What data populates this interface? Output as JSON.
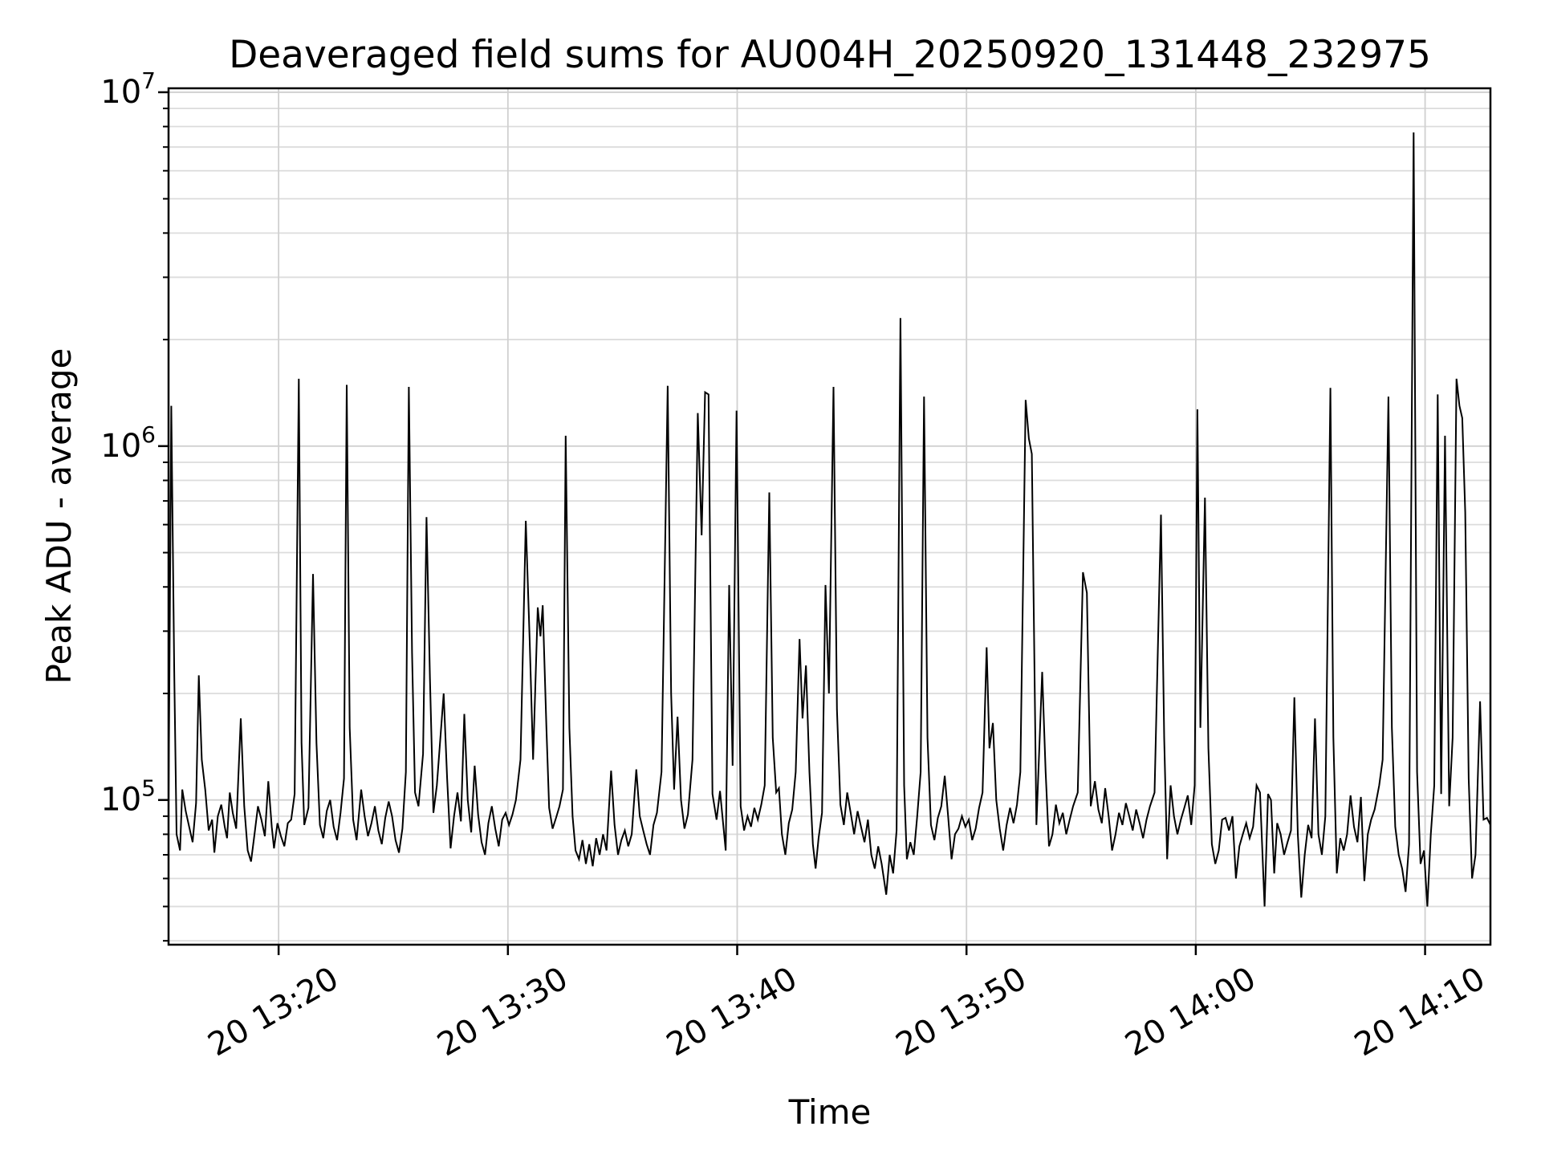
{
  "figure": {
    "title": "Deaveraged field sums for AU004H_20250920_131448_232975",
    "background": "#ffffff"
  },
  "x_axis": {
    "label": "Time",
    "tick_labels": [
      "20 13:20",
      "20 13:30",
      "20 13:40",
      "20 13:50",
      "20 14:00",
      "20 14:10"
    ]
  },
  "y_axis": {
    "label": "Peak ADU - average",
    "tick_labels": [
      "10⁵",
      "10⁶",
      "10⁷"
    ]
  },
  "chart_data": {
    "type": "line",
    "title": "Deaveraged field sums for AU004H_20250920_131448_232975",
    "xlabel": "Time",
    "ylabel": "Peak ADU - average",
    "yscale": "log",
    "grid": "both",
    "legend": "none",
    "line_color": "#000000",
    "grid_minor_color": "#dcdcdc",
    "grid_major_color": "#d0d0d0",
    "spine_color": "#000000",
    "x_unit": "minutes after 13:00, day 20",
    "xlim": [
      15.2,
      72.85
    ],
    "ylim": [
      39000,
      10260000
    ],
    "x_ticks": [
      {
        "t": 20,
        "label": "20 13:20"
      },
      {
        "t": 30,
        "label": "20 13:30"
      },
      {
        "t": 40,
        "label": "20 13:40"
      },
      {
        "t": 50,
        "label": "20 13:50"
      },
      {
        "t": 60,
        "label": "20 14:00"
      },
      {
        "t": 70,
        "label": "20 14:10"
      }
    ],
    "y_major_ticks": [
      {
        "value": 100000,
        "base": "10",
        "exp": "5"
      },
      {
        "value": 1000000,
        "base": "10",
        "exp": "6"
      },
      {
        "value": 10000000,
        "base": "10",
        "exp": "7"
      }
    ],
    "y_minor_ticks": [
      40000,
      50000,
      60000,
      70000,
      80000,
      90000,
      200000,
      300000,
      400000,
      500000,
      600000,
      700000,
      800000,
      900000,
      2000000,
      3000000,
      4000000,
      5000000,
      6000000,
      7000000,
      8000000,
      9000000
    ],
    "points": [
      [
        15.2,
        98000
      ],
      [
        15.32,
        1300000
      ],
      [
        15.45,
        230000
      ],
      [
        15.55,
        80000
      ],
      [
        15.7,
        72000
      ],
      [
        15.8,
        107000
      ],
      [
        15.95,
        93000
      ],
      [
        16.1,
        84000
      ],
      [
        16.25,
        76000
      ],
      [
        16.4,
        98000
      ],
      [
        16.52,
        225000
      ],
      [
        16.65,
        130000
      ],
      [
        16.8,
        107000
      ],
      [
        16.95,
        82000
      ],
      [
        17.1,
        88000
      ],
      [
        17.2,
        71000
      ],
      [
        17.35,
        90000
      ],
      [
        17.5,
        97000
      ],
      [
        17.65,
        84000
      ],
      [
        17.75,
        78000
      ],
      [
        17.87,
        105000
      ],
      [
        18.0,
        92000
      ],
      [
        18.15,
        83000
      ],
      [
        18.35,
        170000
      ],
      [
        18.5,
        96000
      ],
      [
        18.65,
        72000
      ],
      [
        18.8,
        67000
      ],
      [
        18.95,
        80000
      ],
      [
        19.1,
        96000
      ],
      [
        19.25,
        88000
      ],
      [
        19.4,
        79000
      ],
      [
        19.55,
        113000
      ],
      [
        19.7,
        84000
      ],
      [
        19.8,
        73000
      ],
      [
        19.95,
        86000
      ],
      [
        20.1,
        79000
      ],
      [
        20.25,
        74000
      ],
      [
        20.4,
        86000
      ],
      [
        20.55,
        88000
      ],
      [
        20.7,
        104000
      ],
      [
        20.88,
        1550000
      ],
      [
        21.0,
        145000
      ],
      [
        21.12,
        85000
      ],
      [
        21.3,
        95000
      ],
      [
        21.5,
        435000
      ],
      [
        21.65,
        145000
      ],
      [
        21.8,
        85000
      ],
      [
        21.95,
        78000
      ],
      [
        22.1,
        93000
      ],
      [
        22.25,
        100000
      ],
      [
        22.4,
        84000
      ],
      [
        22.55,
        77000
      ],
      [
        22.7,
        92000
      ],
      [
        22.85,
        115000
      ],
      [
        22.97,
        1490000
      ],
      [
        23.1,
        160000
      ],
      [
        23.25,
        88000
      ],
      [
        23.4,
        77000
      ],
      [
        23.6,
        107000
      ],
      [
        23.75,
        90000
      ],
      [
        23.9,
        79000
      ],
      [
        24.05,
        86000
      ],
      [
        24.2,
        96000
      ],
      [
        24.35,
        82000
      ],
      [
        24.5,
        75000
      ],
      [
        24.65,
        89000
      ],
      [
        24.8,
        99000
      ],
      [
        24.95,
        90000
      ],
      [
        25.1,
        77000
      ],
      [
        25.25,
        71000
      ],
      [
        25.4,
        83000
      ],
      [
        25.55,
        120000
      ],
      [
        25.68,
        1470000
      ],
      [
        25.82,
        260000
      ],
      [
        25.95,
        105000
      ],
      [
        26.1,
        96000
      ],
      [
        26.3,
        135000
      ],
      [
        26.45,
        630000
      ],
      [
        26.6,
        220000
      ],
      [
        26.75,
        92000
      ],
      [
        26.9,
        110000
      ],
      [
        27.2,
        200000
      ],
      [
        27.35,
        115000
      ],
      [
        27.5,
        73000
      ],
      [
        27.65,
        90000
      ],
      [
        27.8,
        105000
      ],
      [
        27.95,
        87000
      ],
      [
        28.1,
        175000
      ],
      [
        28.25,
        100000
      ],
      [
        28.4,
        81000
      ],
      [
        28.55,
        125000
      ],
      [
        28.7,
        91000
      ],
      [
        28.85,
        76000
      ],
      [
        29.0,
        70000
      ],
      [
        29.15,
        86000
      ],
      [
        29.3,
        96000
      ],
      [
        29.45,
        83000
      ],
      [
        29.6,
        74000
      ],
      [
        29.75,
        88000
      ],
      [
        29.9,
        92000
      ],
      [
        30.05,
        85000
      ],
      [
        30.2,
        91000
      ],
      [
        30.35,
        100000
      ],
      [
        30.55,
        130000
      ],
      [
        30.78,
        615000
      ],
      [
        30.95,
        280000
      ],
      [
        31.1,
        130000
      ],
      [
        31.3,
        350000
      ],
      [
        31.42,
        290000
      ],
      [
        31.52,
        355000
      ],
      [
        31.68,
        160000
      ],
      [
        31.8,
        95000
      ],
      [
        31.95,
        83000
      ],
      [
        32.1,
        89000
      ],
      [
        32.25,
        96000
      ],
      [
        32.4,
        107000
      ],
      [
        32.52,
        1070000
      ],
      [
        32.68,
        160000
      ],
      [
        32.82,
        90000
      ],
      [
        32.95,
        72000
      ],
      [
        33.1,
        68000
      ],
      [
        33.25,
        77000
      ],
      [
        33.4,
        66000
      ],
      [
        33.55,
        75000
      ],
      [
        33.7,
        65000
      ],
      [
        33.85,
        78000
      ],
      [
        34.0,
        70000
      ],
      [
        34.15,
        80000
      ],
      [
        34.3,
        72000
      ],
      [
        34.5,
        121000
      ],
      [
        34.65,
        85000
      ],
      [
        34.8,
        70000
      ],
      [
        34.95,
        77000
      ],
      [
        35.1,
        82000
      ],
      [
        35.25,
        74000
      ],
      [
        35.4,
        80000
      ],
      [
        35.6,
        122000
      ],
      [
        35.75,
        90000
      ],
      [
        35.9,
        82000
      ],
      [
        36.05,
        75000
      ],
      [
        36.2,
        70000
      ],
      [
        36.35,
        85000
      ],
      [
        36.5,
        92000
      ],
      [
        36.7,
        120000
      ],
      [
        36.97,
        1480000
      ],
      [
        37.12,
        200000
      ],
      [
        37.25,
        107000
      ],
      [
        37.4,
        172000
      ],
      [
        37.55,
        100000
      ],
      [
        37.7,
        83000
      ],
      [
        37.85,
        91000
      ],
      [
        38.05,
        130000
      ],
      [
        38.28,
        1240000
      ],
      [
        38.45,
        560000
      ],
      [
        38.6,
        1420000
      ],
      [
        38.75,
        1400000
      ],
      [
        38.92,
        104000
      ],
      [
        39.1,
        88000
      ],
      [
        39.25,
        106000
      ],
      [
        39.5,
        72000
      ],
      [
        39.65,
        405000
      ],
      [
        39.8,
        125000
      ],
      [
        39.97,
        1260000
      ],
      [
        40.15,
        96000
      ],
      [
        40.3,
        82000
      ],
      [
        40.45,
        90000
      ],
      [
        40.6,
        84000
      ],
      [
        40.75,
        95000
      ],
      [
        40.9,
        88000
      ],
      [
        41.05,
        97000
      ],
      [
        41.2,
        110000
      ],
      [
        41.4,
        740000
      ],
      [
        41.55,
        150000
      ],
      [
        41.7,
        105000
      ],
      [
        41.82,
        108000
      ],
      [
        41.95,
        80000
      ],
      [
        42.1,
        70000
      ],
      [
        42.25,
        86000
      ],
      [
        42.4,
        94000
      ],
      [
        42.55,
        120000
      ],
      [
        42.72,
        285000
      ],
      [
        42.85,
        170000
      ],
      [
        43.0,
        240000
      ],
      [
        43.15,
        120000
      ],
      [
        43.3,
        75000
      ],
      [
        43.42,
        64000
      ],
      [
        43.55,
        78000
      ],
      [
        43.7,
        92000
      ],
      [
        43.85,
        405000
      ],
      [
        44.0,
        200000
      ],
      [
        44.2,
        1470000
      ],
      [
        44.35,
        180000
      ],
      [
        44.5,
        97000
      ],
      [
        44.65,
        85000
      ],
      [
        44.8,
        105000
      ],
      [
        44.95,
        92000
      ],
      [
        45.1,
        80000
      ],
      [
        45.25,
        93000
      ],
      [
        45.4,
        84000
      ],
      [
        45.55,
        76000
      ],
      [
        45.7,
        88000
      ],
      [
        45.85,
        70000
      ],
      [
        46.0,
        64000
      ],
      [
        46.15,
        74000
      ],
      [
        46.3,
        66000
      ],
      [
        46.5,
        54000
      ],
      [
        46.65,
        70000
      ],
      [
        46.8,
        62000
      ],
      [
        46.95,
        82000
      ],
      [
        47.12,
        2300000
      ],
      [
        47.28,
        110000
      ],
      [
        47.4,
        68000
      ],
      [
        47.55,
        76000
      ],
      [
        47.7,
        70000
      ],
      [
        47.85,
        90000
      ],
      [
        48.0,
        120000
      ],
      [
        48.15,
        1380000
      ],
      [
        48.3,
        150000
      ],
      [
        48.45,
        85000
      ],
      [
        48.6,
        77000
      ],
      [
        48.75,
        89000
      ],
      [
        48.9,
        96000
      ],
      [
        49.05,
        117000
      ],
      [
        49.2,
        90000
      ],
      [
        49.35,
        68000
      ],
      [
        49.5,
        80000
      ],
      [
        49.65,
        83000
      ],
      [
        49.8,
        90000
      ],
      [
        49.95,
        84000
      ],
      [
        50.1,
        88000
      ],
      [
        50.25,
        77000
      ],
      [
        50.4,
        83000
      ],
      [
        50.55,
        95000
      ],
      [
        50.7,
        105000
      ],
      [
        50.88,
        270000
      ],
      [
        51.0,
        140000
      ],
      [
        51.15,
        165000
      ],
      [
        51.3,
        100000
      ],
      [
        51.45,
        83000
      ],
      [
        51.6,
        72000
      ],
      [
        51.75,
        85000
      ],
      [
        51.9,
        95000
      ],
      [
        52.05,
        86000
      ],
      [
        52.2,
        97000
      ],
      [
        52.35,
        120000
      ],
      [
        52.58,
        1350000
      ],
      [
        52.72,
        1050000
      ],
      [
        52.85,
        950000
      ],
      [
        53.05,
        85000
      ],
      [
        53.3,
        230000
      ],
      [
        53.45,
        120000
      ],
      [
        53.6,
        74000
      ],
      [
        53.75,
        80000
      ],
      [
        53.9,
        97000
      ],
      [
        54.05,
        86000
      ],
      [
        54.2,
        92000
      ],
      [
        54.35,
        80000
      ],
      [
        54.5,
        88000
      ],
      [
        54.65,
        96000
      ],
      [
        54.85,
        105000
      ],
      [
        55.08,
        440000
      ],
      [
        55.25,
        385000
      ],
      [
        55.42,
        96000
      ],
      [
        55.6,
        113000
      ],
      [
        55.75,
        94000
      ],
      [
        55.9,
        86000
      ],
      [
        56.05,
        108000
      ],
      [
        56.2,
        90000
      ],
      [
        56.35,
        72000
      ],
      [
        56.5,
        80000
      ],
      [
        56.65,
        92000
      ],
      [
        56.8,
        85000
      ],
      [
        56.95,
        98000
      ],
      [
        57.1,
        90000
      ],
      [
        57.25,
        82000
      ],
      [
        57.4,
        94000
      ],
      [
        57.55,
        86000
      ],
      [
        57.7,
        78000
      ],
      [
        57.85,
        88000
      ],
      [
        58.0,
        96000
      ],
      [
        58.2,
        105000
      ],
      [
        58.48,
        640000
      ],
      [
        58.62,
        150000
      ],
      [
        58.75,
        68000
      ],
      [
        58.9,
        110000
      ],
      [
        59.05,
        90000
      ],
      [
        59.2,
        80000
      ],
      [
        59.35,
        88000
      ],
      [
        59.5,
        95000
      ],
      [
        59.65,
        103000
      ],
      [
        59.8,
        85000
      ],
      [
        59.95,
        110000
      ],
      [
        60.07,
        1270000
      ],
      [
        60.2,
        160000
      ],
      [
        60.4,
        715000
      ],
      [
        60.55,
        140000
      ],
      [
        60.7,
        75000
      ],
      [
        60.85,
        66000
      ],
      [
        61.0,
        72000
      ],
      [
        61.15,
        88000
      ],
      [
        61.3,
        89000
      ],
      [
        61.45,
        82000
      ],
      [
        61.6,
        90000
      ],
      [
        61.75,
        60000
      ],
      [
        61.9,
        74000
      ],
      [
        62.05,
        80000
      ],
      [
        62.2,
        86000
      ],
      [
        62.35,
        78000
      ],
      [
        62.5,
        84000
      ],
      [
        62.65,
        110000
      ],
      [
        62.8,
        105000
      ],
      [
        63.0,
        50000
      ],
      [
        63.15,
        104000
      ],
      [
        63.28,
        100000
      ],
      [
        63.42,
        62000
      ],
      [
        63.55,
        86000
      ],
      [
        63.7,
        80000
      ],
      [
        63.85,
        70000
      ],
      [
        64.0,
        76000
      ],
      [
        64.15,
        82000
      ],
      [
        64.3,
        195000
      ],
      [
        64.45,
        80000
      ],
      [
        64.6,
        53000
      ],
      [
        64.75,
        70000
      ],
      [
        64.9,
        85000
      ],
      [
        65.05,
        78000
      ],
      [
        65.2,
        170000
      ],
      [
        65.35,
        80000
      ],
      [
        65.5,
        70000
      ],
      [
        65.65,
        90000
      ],
      [
        65.87,
        1460000
      ],
      [
        66.0,
        150000
      ],
      [
        66.15,
        62000
      ],
      [
        66.3,
        78000
      ],
      [
        66.45,
        72000
      ],
      [
        66.6,
        80000
      ],
      [
        66.75,
        103000
      ],
      [
        66.9,
        84000
      ],
      [
        67.05,
        76000
      ],
      [
        67.2,
        102000
      ],
      [
        67.35,
        59000
      ],
      [
        67.5,
        80000
      ],
      [
        67.65,
        88000
      ],
      [
        67.8,
        94000
      ],
      [
        68.0,
        110000
      ],
      [
        68.15,
        130000
      ],
      [
        68.4,
        1380000
      ],
      [
        68.55,
        160000
      ],
      [
        68.7,
        84000
      ],
      [
        68.85,
        70000
      ],
      [
        69.0,
        64000
      ],
      [
        69.15,
        55000
      ],
      [
        69.3,
        75000
      ],
      [
        69.5,
        7700000
      ],
      [
        69.65,
        120000
      ],
      [
        69.8,
        66000
      ],
      [
        69.95,
        72000
      ],
      [
        70.1,
        50000
      ],
      [
        70.25,
        80000
      ],
      [
        70.4,
        110000
      ],
      [
        70.55,
        1400000
      ],
      [
        70.7,
        104000
      ],
      [
        70.87,
        1070000
      ],
      [
        71.05,
        96000
      ],
      [
        71.2,
        150000
      ],
      [
        71.37,
        1550000
      ],
      [
        71.5,
        1300000
      ],
      [
        71.62,
        1200000
      ],
      [
        71.75,
        650000
      ],
      [
        71.9,
        115000
      ],
      [
        72.05,
        60000
      ],
      [
        72.2,
        70000
      ],
      [
        72.4,
        190000
      ],
      [
        72.55,
        88000
      ],
      [
        72.7,
        89000
      ],
      [
        72.85,
        85000
      ]
    ]
  }
}
